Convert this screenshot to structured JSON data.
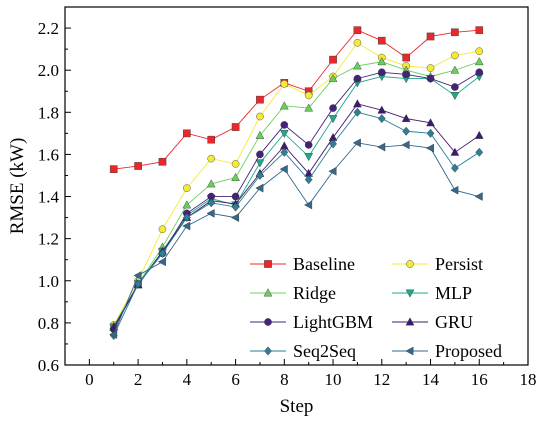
{
  "chart_data": {
    "type": "line",
    "xlabel": "Step",
    "ylabel": "RMSE (kW)",
    "xlim": [
      -1,
      18
    ],
    "ylim": [
      0.6,
      2.3
    ],
    "xticks": [
      0,
      2,
      4,
      6,
      8,
      10,
      12,
      14,
      16,
      18
    ],
    "yticks": [
      0.6,
      0.8,
      1.0,
      1.2,
      1.4,
      1.6,
      1.8,
      2.0,
      2.2
    ],
    "ytick_labels": [
      "0.6",
      "0.8",
      "1.0",
      "1.2",
      "1.4",
      "1.6",
      "1.8",
      "2.0",
      "2.2"
    ],
    "grid": false,
    "legend_position": "bottom-right",
    "x": [
      1,
      2,
      3,
      4,
      5,
      6,
      7,
      8,
      9,
      10,
      11,
      12,
      13,
      14,
      15,
      16
    ],
    "series": [
      {
        "name": "Baseline",
        "color": "#e8282b",
        "marker": "square",
        "values": [
          1.53,
          1.545,
          1.565,
          1.7,
          1.67,
          1.73,
          1.86,
          1.94,
          1.9,
          2.05,
          2.19,
          2.14,
          2.06,
          2.16,
          2.18,
          2.19
        ]
      },
      {
        "name": "Persist",
        "color": "#f2ea36",
        "marker": "circle",
        "values": [
          0.79,
          1.0,
          1.245,
          1.44,
          1.58,
          1.555,
          1.78,
          1.935,
          1.88,
          1.97,
          2.13,
          2.06,
          2.02,
          2.01,
          2.07,
          2.09
        ]
      },
      {
        "name": "Ridge",
        "color": "#6ccf5c",
        "marker": "triangle-up",
        "values": [
          0.785,
          0.985,
          1.16,
          1.36,
          1.46,
          1.49,
          1.69,
          1.83,
          1.82,
          1.96,
          2.02,
          2.04,
          2.0,
          1.97,
          2.0,
          2.04
        ]
      },
      {
        "name": "MLP",
        "color": "#1fa88a",
        "marker": "triangle-down",
        "values": [
          0.78,
          0.985,
          1.14,
          1.31,
          1.39,
          1.36,
          1.56,
          1.7,
          1.59,
          1.77,
          1.94,
          1.97,
          1.96,
          1.96,
          1.88,
          1.97
        ]
      },
      {
        "name": "LightGBM",
        "color": "#46237a",
        "marker": "circle",
        "values": [
          0.77,
          0.985,
          1.13,
          1.32,
          1.4,
          1.4,
          1.6,
          1.74,
          1.645,
          1.82,
          1.96,
          1.99,
          1.98,
          1.96,
          1.92,
          1.99
        ]
      },
      {
        "name": "GRU",
        "color": "#3e1a6e",
        "marker": "triangle-up",
        "values": [
          0.78,
          0.98,
          1.14,
          1.3,
          1.38,
          1.365,
          1.51,
          1.64,
          1.51,
          1.68,
          1.84,
          1.81,
          1.77,
          1.75,
          1.61,
          1.69
        ]
      },
      {
        "name": "Seq2Seq",
        "color": "#2e7e96",
        "marker": "diamond",
        "values": [
          0.74,
          0.985,
          1.13,
          1.3,
          1.37,
          1.35,
          1.5,
          1.61,
          1.48,
          1.65,
          1.8,
          1.77,
          1.71,
          1.7,
          1.535,
          1.61
        ]
      },
      {
        "name": "Proposed",
        "color": "#34688d",
        "marker": "triangle-left",
        "values": [
          0.745,
          1.025,
          1.09,
          1.26,
          1.32,
          1.3,
          1.44,
          1.53,
          1.36,
          1.52,
          1.655,
          1.635,
          1.645,
          1.63,
          1.43,
          1.4
        ]
      }
    ]
  }
}
